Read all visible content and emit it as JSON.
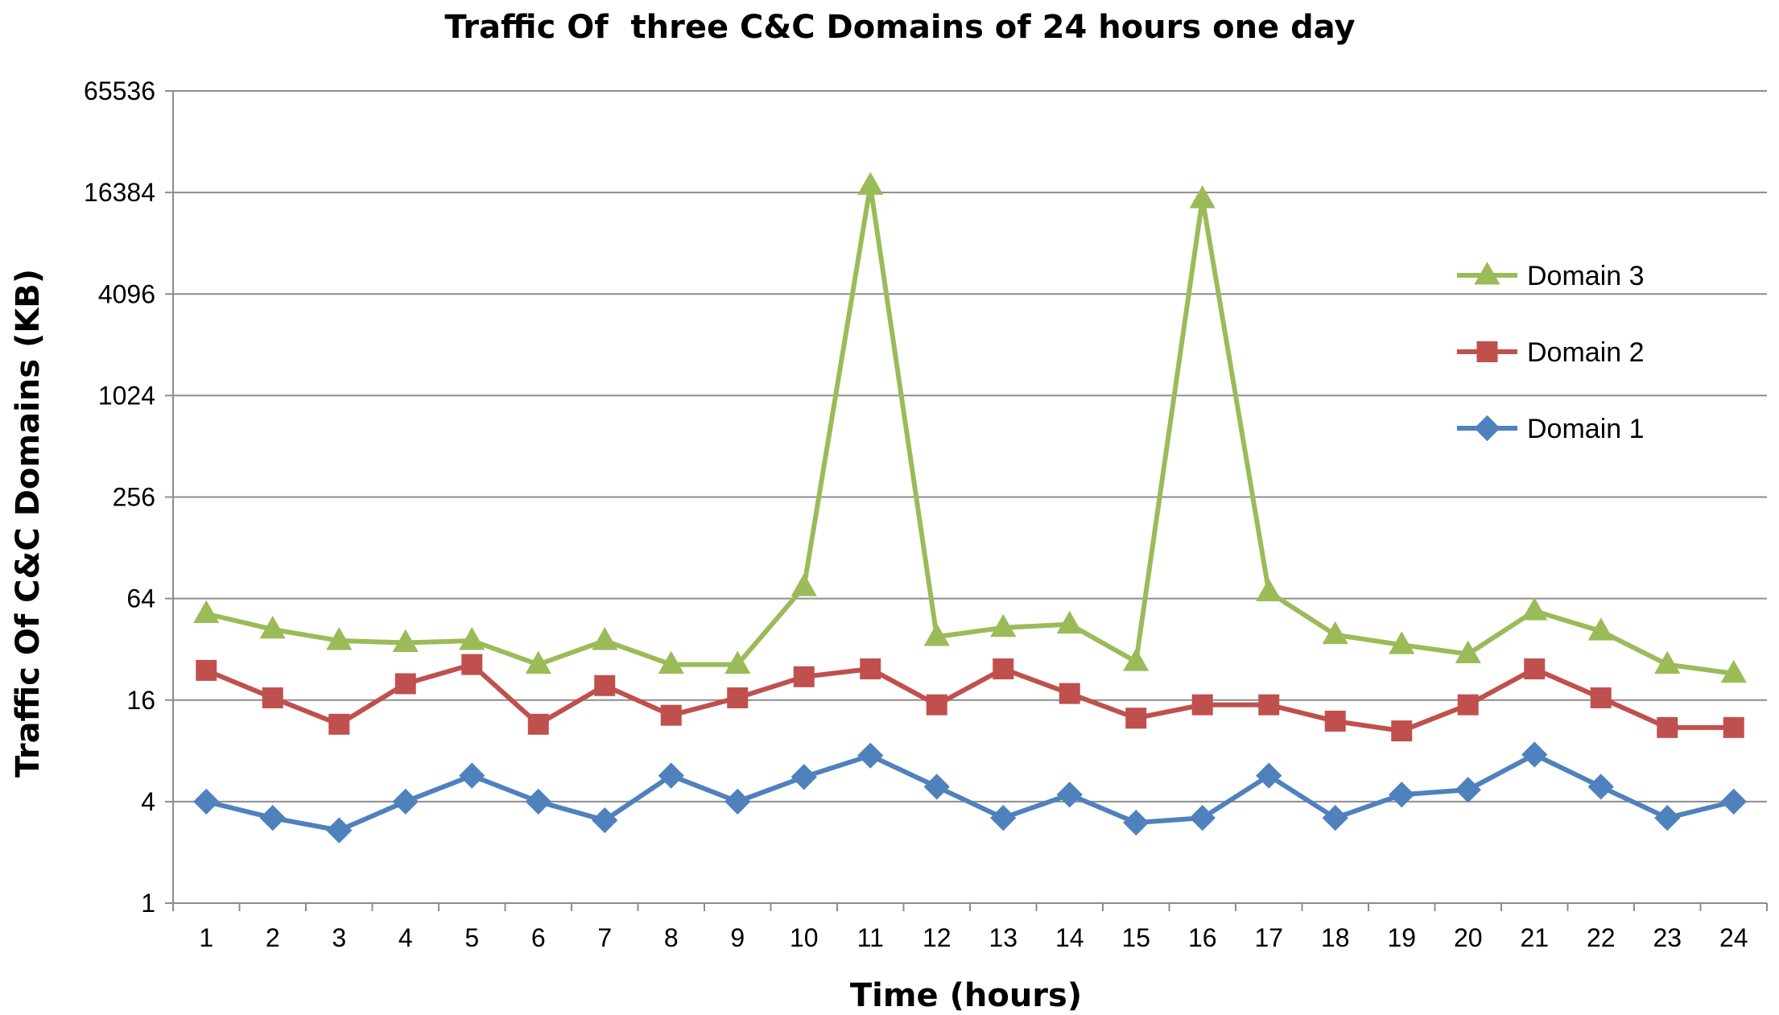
{
  "chart_data": {
    "type": "line",
    "title": "Traffic Of  three C&C Domains of 24 hours one day",
    "xlabel": "Time (hours)",
    "ylabel": "Traffic Of C&C Domains (KB)",
    "yscale": "log2",
    "ylim": [
      1,
      65536
    ],
    "yticks": [
      "1",
      "4",
      "16",
      "64",
      "256",
      "1024",
      "4096",
      "16384",
      "65536"
    ],
    "ytick_values": [
      1,
      4,
      16,
      64,
      256,
      1024,
      4096,
      16384,
      65536
    ],
    "categories": [
      "1",
      "2",
      "3",
      "4",
      "5",
      "6",
      "7",
      "8",
      "9",
      "10",
      "11",
      "12",
      "13",
      "14",
      "15",
      "16",
      "17",
      "18",
      "19",
      "20",
      "21",
      "22",
      "23",
      "24"
    ],
    "grid": "horizontal",
    "legend_position": "right",
    "series": [
      {
        "name": "Domain 3",
        "color": "#9bbb59",
        "marker": "triangle",
        "values": [
          52,
          42,
          36,
          35,
          36,
          26,
          36,
          26,
          26,
          75,
          18000,
          38,
          43,
          45,
          27,
          15000,
          70,
          39,
          34,
          30,
          54,
          41,
          26,
          23
        ]
      },
      {
        "name": "Domain 2",
        "color": "#c0504d",
        "marker": "square",
        "values": [
          24,
          16.5,
          11.5,
          20,
          26,
          11.5,
          19.5,
          13,
          16.5,
          22,
          24.5,
          15,
          24.5,
          17.5,
          12.5,
          15,
          15,
          12,
          10.5,
          15,
          24.5,
          16.5,
          11,
          11
        ]
      },
      {
        "name": "Domain 1",
        "color": "#4f81bd",
        "marker": "diamond",
        "values": [
          4,
          3.2,
          2.7,
          4,
          5.7,
          4,
          3.1,
          5.7,
          4,
          5.6,
          7.5,
          4.9,
          3.2,
          4.4,
          3,
          3.2,
          5.7,
          3.2,
          4.4,
          4.7,
          7.6,
          4.9,
          3.2,
          4
        ]
      }
    ]
  }
}
